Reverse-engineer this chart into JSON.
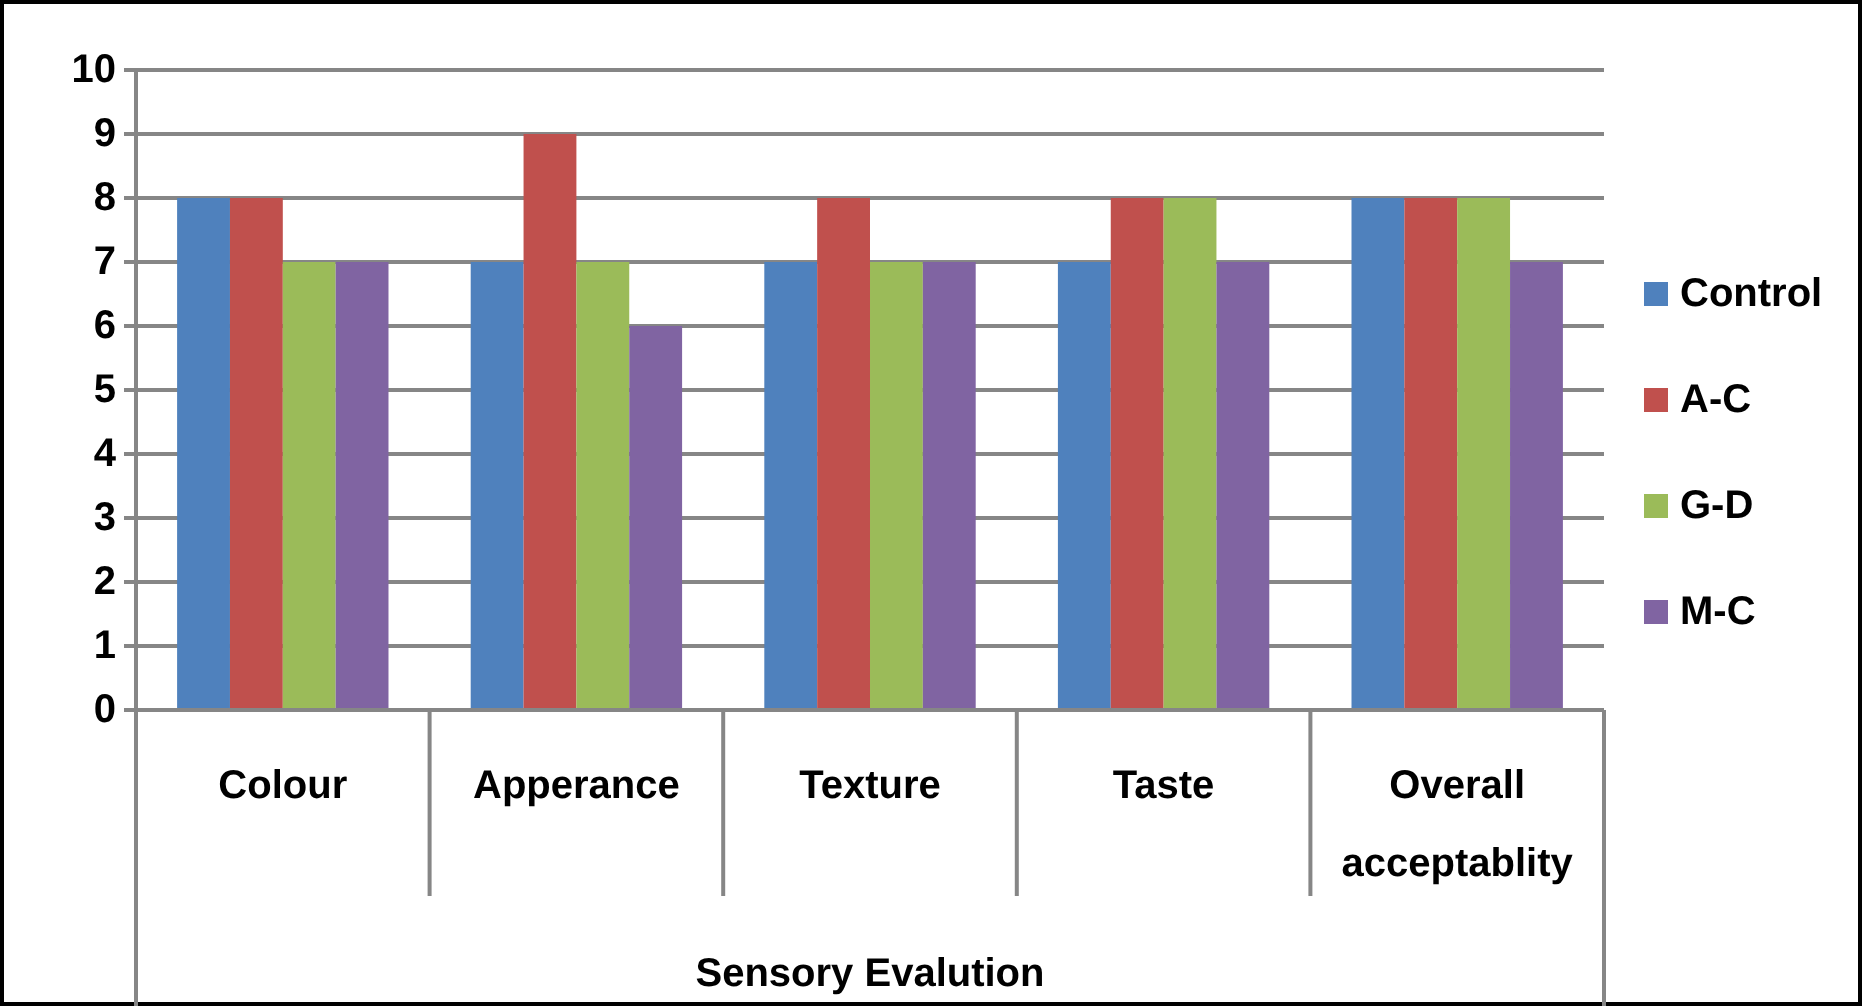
{
  "chart_data": {
    "type": "bar",
    "xlabel": "Sensory Evalution",
    "categories": [
      "Colour",
      "Apperance",
      "Texture",
      "Taste",
      "Overall acceptablity"
    ],
    "series": [
      {
        "name": "Control",
        "color": "#4f81bd",
        "values": [
          8,
          7,
          7,
          7,
          8
        ]
      },
      {
        "name": "A-C",
        "color": "#c0504d",
        "values": [
          8,
          9,
          8,
          8,
          8
        ]
      },
      {
        "name": "G-D",
        "color": "#9bbb59",
        "values": [
          7,
          7,
          7,
          8,
          8
        ]
      },
      {
        "name": "M-C",
        "color": "#8064a2",
        "values": [
          7,
          6,
          7,
          7,
          7
        ]
      }
    ],
    "ylim": [
      0,
      10
    ],
    "yticks": [
      0,
      1,
      2,
      3,
      4,
      5,
      6,
      7,
      8,
      9,
      10
    ],
    "grid": "y",
    "legend": "right"
  }
}
